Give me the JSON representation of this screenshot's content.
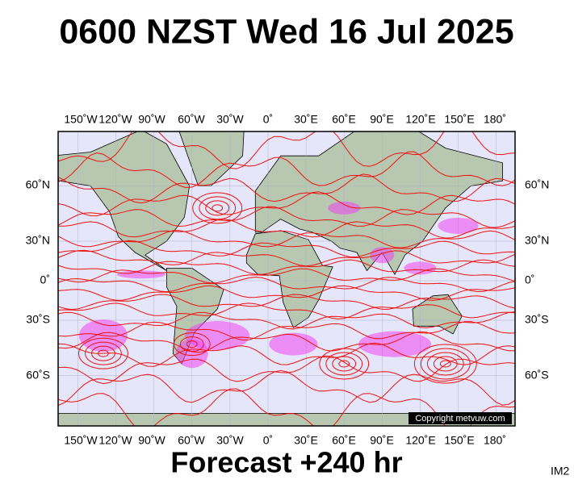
{
  "header": {
    "title": "0600 NZST Wed 16 Jul 2025"
  },
  "map": {
    "longitude_labels": [
      "150˚W",
      "120˚W",
      "90˚W",
      "60˚W",
      "30˚W",
      "0˚",
      "30˚E",
      "60˚E",
      "90˚E",
      "120˚E",
      "150˚E",
      "180˚"
    ],
    "latitude_labels": [
      "60˚N",
      "30˚N",
      "0˚",
      "30˚S",
      "60˚S"
    ],
    "copyright": "Copyright metvuw.com"
  },
  "footer": {
    "forecast": "Forecast +240 hr",
    "image_id": "IM2"
  }
}
